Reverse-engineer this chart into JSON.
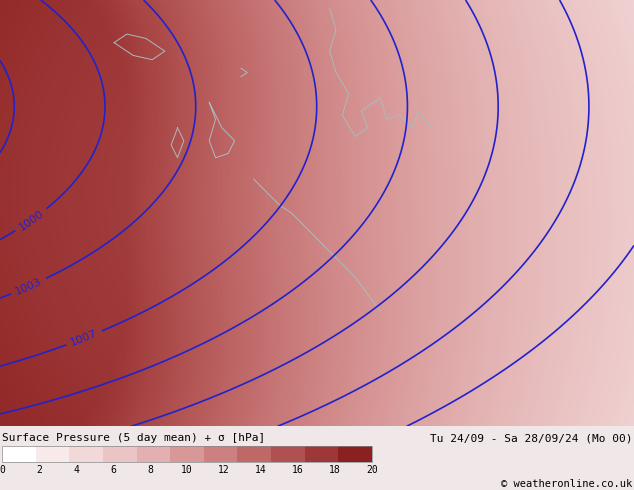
{
  "title_left": "Surface Pressure (5 day mean) + σ [hPa]",
  "title_right": "Tu 24/09 - Sa 28/09/24 (Mo 00)",
  "watermark": "© weatheronline.co.uk",
  "colorbar_values": [
    0,
    2,
    4,
    6,
    8,
    10,
    12,
    14,
    16,
    18,
    20
  ],
  "colorbar_colors": [
    "#ffffff",
    "#f8eaea",
    "#f2d8d8",
    "#ebc5c5",
    "#e2b0b0",
    "#d89898",
    "#cc8080",
    "#bf6868",
    "#b05050",
    "#9e3838",
    "#8b2020"
  ],
  "background_color": "#f0e8e8",
  "contour_color": "#2222cc",
  "contour_label_color": "#2222cc",
  "contour_labels": [
    1000,
    1003,
    1007
  ],
  "sigma_max": 20
}
